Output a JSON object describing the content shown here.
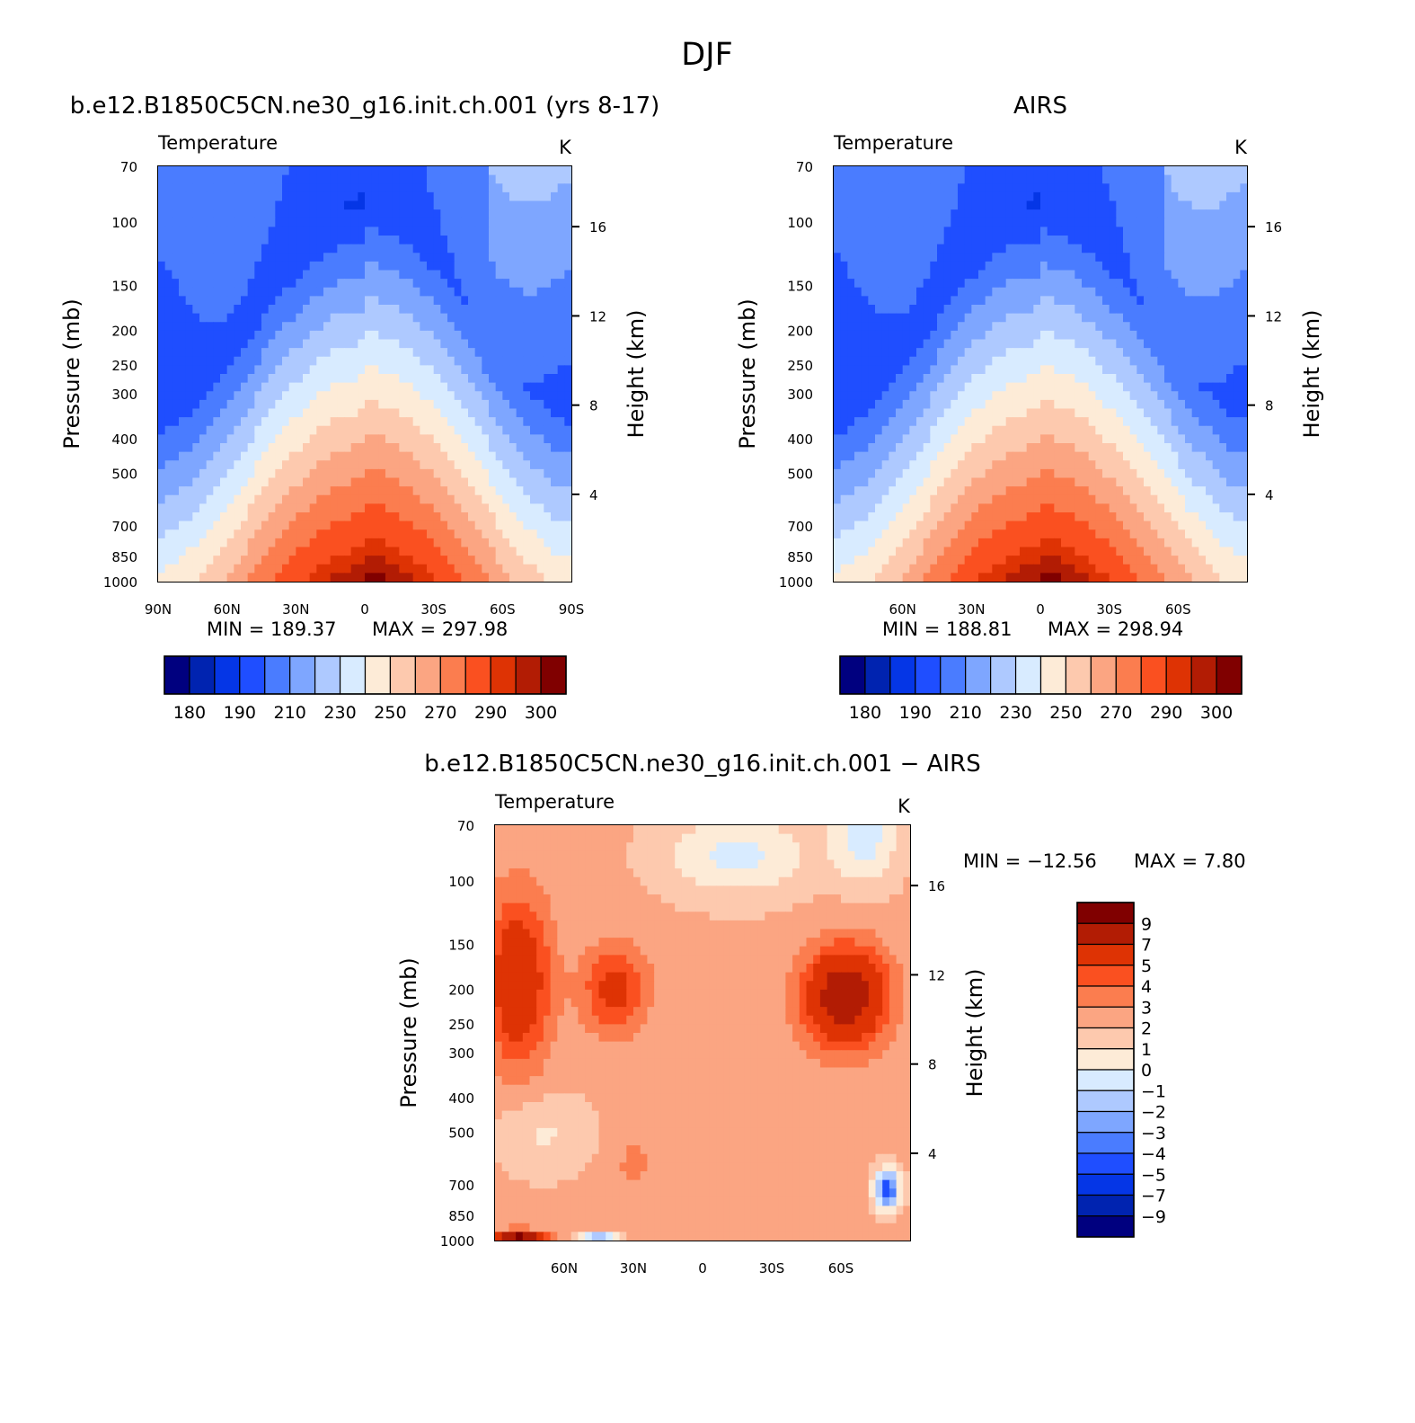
{
  "figure": {
    "title": "DJF"
  },
  "chart_data": [
    {
      "type": "heatmap",
      "id": "model",
      "title": "b.e12.B1850C5CN.ne30_g16.init.ch.001 (yrs 8-17)",
      "subtitle_left": "Temperature",
      "subtitle_right": "K",
      "ylabel": "Pressure (mb)",
      "ylabel_right": "Height (km)",
      "x_ticks": [
        "90N",
        "60N",
        "30N",
        "0",
        "30S",
        "60S",
        "90S"
      ],
      "x_tick_values": [
        90,
        60,
        30,
        0,
        -30,
        -60,
        -90
      ],
      "xlim": [
        90,
        -90
      ],
      "y_ticks": [
        70,
        100,
        150,
        200,
        250,
        300,
        400,
        500,
        700,
        850,
        1000
      ],
      "ylim": [
        1000,
        70
      ],
      "y_scale": "log",
      "height_ticks": [
        16,
        12,
        8,
        4
      ],
      "min_label": "MIN = 189.37",
      "max_label": "MAX = 297.98",
      "min": 189.37,
      "max": 297.98,
      "colorbar": {
        "orientation": "horizontal",
        "labels": [
          "180",
          "190",
          "210",
          "230",
          "250",
          "270",
          "290",
          "300"
        ],
        "colors": [
          "#00007f",
          "#0023b0",
          "#0536e6",
          "#1f4eff",
          "#4a7cff",
          "#7ea6ff",
          "#aec9ff",
          "#d8ebff",
          "#fdebd7",
          "#fdc9ae",
          "#fba582",
          "#fb7d4f",
          "#fa5020",
          "#de3304",
          "#b21c04",
          "#800000"
        ]
      }
    },
    {
      "type": "heatmap",
      "id": "airs",
      "title": "AIRS",
      "subtitle_left": "Temperature",
      "subtitle_right": "K",
      "ylabel": "Pressure (mb)",
      "ylabel_right": "Height (km)",
      "x_ticks": [
        "60N",
        "30N",
        "0",
        "30S",
        "60S"
      ],
      "x_tick_values": [
        60,
        30,
        0,
        -30,
        -60
      ],
      "xlim": [
        90,
        -90
      ],
      "y_ticks": [
        70,
        100,
        150,
        200,
        250,
        300,
        400,
        500,
        700,
        850,
        1000
      ],
      "ylim": [
        1000,
        70
      ],
      "y_scale": "log",
      "height_ticks": [
        16,
        12,
        8,
        4
      ],
      "min_label": "MIN = 188.81",
      "max_label": "MAX = 298.94",
      "min": 188.81,
      "max": 298.94,
      "colorbar": {
        "orientation": "horizontal",
        "labels": [
          "180",
          "190",
          "210",
          "230",
          "250",
          "270",
          "290",
          "300"
        ],
        "colors": [
          "#00007f",
          "#0023b0",
          "#0536e6",
          "#1f4eff",
          "#4a7cff",
          "#7ea6ff",
          "#aec9ff",
          "#d8ebff",
          "#fdebd7",
          "#fdc9ae",
          "#fba582",
          "#fb7d4f",
          "#fa5020",
          "#de3304",
          "#b21c04",
          "#800000"
        ]
      }
    },
    {
      "type": "heatmap",
      "id": "diff",
      "title": "b.e12.B1850C5CN.ne30_g16.init.ch.001 − AIRS",
      "subtitle_left": "Temperature",
      "subtitle_right": "K",
      "ylabel": "Pressure (mb)",
      "ylabel_right": "Height (km)",
      "x_ticks": [
        "60N",
        "30N",
        "0",
        "30S",
        "60S"
      ],
      "x_tick_values": [
        60,
        30,
        0,
        -30,
        -60
      ],
      "xlim": [
        90,
        -90
      ],
      "y_ticks": [
        70,
        100,
        150,
        200,
        250,
        300,
        400,
        500,
        700,
        850,
        1000
      ],
      "ylim": [
        1000,
        70
      ],
      "y_scale": "log",
      "height_ticks": [
        16,
        12,
        8,
        4
      ],
      "min_label": "MIN = −12.56",
      "max_label": "MAX =    7.80",
      "min": -12.56,
      "max": 7.8,
      "colorbar": {
        "orientation": "vertical",
        "labels": [
          "9",
          "7",
          "5",
          "4",
          "3",
          "2",
          "1",
          "0",
          "−1",
          "−2",
          "−3",
          "−4",
          "−5",
          "−7",
          "−9"
        ],
        "colors": [
          "#800000",
          "#b21c04",
          "#de3304",
          "#fa5020",
          "#fb7d4f",
          "#fba582",
          "#fdc9ae",
          "#fdebd7",
          "#d8ebff",
          "#aec9ff",
          "#7ea6ff",
          "#4a7cff",
          "#1f4eff",
          "#0536e6",
          "#0023b0",
          "#00007f"
        ]
      }
    }
  ]
}
